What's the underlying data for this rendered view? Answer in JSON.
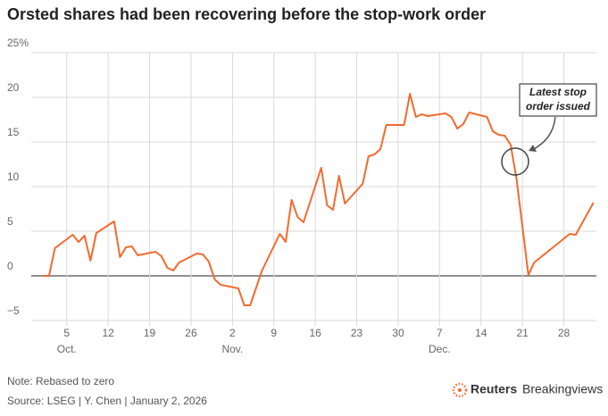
{
  "chart_data": {
    "type": "line",
    "title": "Orsted shares had been recovering before the stop-work order",
    "x": [
      1,
      2,
      3,
      6,
      7,
      8,
      9,
      10,
      13,
      14,
      15,
      16,
      17,
      20,
      21,
      22,
      23,
      24,
      27,
      28,
      29,
      30,
      31,
      34,
      35,
      36,
      38,
      41,
      42,
      43,
      44,
      45,
      48,
      49,
      50,
      51,
      52,
      55,
      56,
      57,
      58,
      59,
      62,
      63,
      64,
      65,
      66,
      69,
      70,
      71,
      72,
      73,
      76,
      77,
      78,
      79,
      80,
      81,
      83,
      84,
      90,
      91,
      94
    ],
    "values": [
      0,
      0,
      3.1,
      4.6,
      3.8,
      4.5,
      1.7,
      4.8,
      6.1,
      2.1,
      3.2,
      3.3,
      2.3,
      2.7,
      2.2,
      0.9,
      0.6,
      1.5,
      2.5,
      2.4,
      1.6,
      -0.4,
      -1,
      -1.4,
      -3.3,
      -3.3,
      0.6,
      4.7,
      3.8,
      8.5,
      6.6,
      6.0,
      12.1,
      7.9,
      7.4,
      11.2,
      8.1,
      10.3,
      13.4,
      13.6,
      14.2,
      16.9,
      16.9,
      20.4,
      17.8,
      18.1,
      17.9,
      18.2,
      17.8,
      16.5,
      17.0,
      18.3,
      17.8,
      16.2,
      15.8,
      15.7,
      14.7,
      10.9,
      0.1,
      1.5,
      4.7,
      4.6,
      8.2
    ],
    "color": "#f26a2e",
    "xlim": [
      -1,
      94.5
    ],
    "xticks": [
      5,
      12,
      19,
      26,
      {
        "value": 33,
        "label": "2"
      },
      {
        "value": 40,
        "label": "9"
      },
      {
        "value": 47,
        "label": "16"
      },
      {
        "value": 54,
        "label": "23"
      },
      {
        "value": 61,
        "label": "30"
      },
      {
        "value": 68,
        "label": "7"
      },
      {
        "value": 75,
        "label": "14"
      },
      {
        "value": 82,
        "label": "21"
      },
      {
        "value": 89,
        "label": "28"
      }
    ],
    "month_labels": [
      {
        "value": 5,
        "label": "Oct."
      },
      {
        "value": 33,
        "label": "Nov."
      },
      {
        "value": 68,
        "label": "Dec."
      }
    ],
    "ylim": [
      -5,
      25
    ],
    "yticks": [
      {
        "value": -5,
        "label": "−5"
      },
      0,
      5,
      10,
      15,
      20,
      {
        "value": 25,
        "label": "25%"
      }
    ],
    "grid": true,
    "annotation": [
      "Latest stop",
      "order issued"
    ],
    "note": "Note: Rebased to zero",
    "source": "Source: LSEG | Y. Chen | January 2, 2026",
    "branding": [
      "Reuters",
      "Breakingviews"
    ]
  }
}
